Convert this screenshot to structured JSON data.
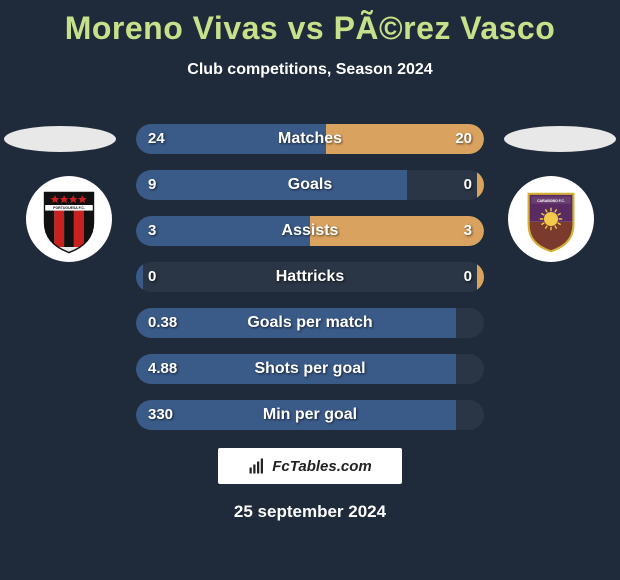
{
  "title": "Moreno Vivas vs PÃ©rez Vasco",
  "subtitle": "Club competitions, Season 2024",
  "date": "25 september 2024",
  "logo_text": "FcTables.com",
  "colors": {
    "bg": "#1f2a3a",
    "title": "#c7e08a",
    "bar_left": "#3a5a88",
    "bar_right": "#d9a25f",
    "bar_track": "#2a3545"
  },
  "stats": [
    {
      "label": "Matches",
      "left_val": "24",
      "right_val": "20",
      "left_pct": 54.5,
      "right_pct": 45.5
    },
    {
      "label": "Goals",
      "left_val": "9",
      "right_val": "0",
      "left_pct": 78,
      "right_pct": 2
    },
    {
      "label": "Assists",
      "left_val": "3",
      "right_val": "3",
      "left_pct": 50,
      "right_pct": 50
    },
    {
      "label": "Hattricks",
      "left_val": "0",
      "right_val": "0",
      "left_pct": 2,
      "right_pct": 2
    },
    {
      "label": "Goals per match",
      "left_val": "0.38",
      "right_val": "",
      "left_pct": 92,
      "right_pct": 0
    },
    {
      "label": "Shots per goal",
      "left_val": "4.88",
      "right_val": "",
      "left_pct": 92,
      "right_pct": 0
    },
    {
      "label": "Min per goal",
      "left_val": "330",
      "right_val": "",
      "left_pct": 92,
      "right_pct": 0
    }
  ],
  "crest_left": {
    "name": "portuguesa-fc",
    "shield_fill": "#e8e8e8",
    "stripes": [
      "#111111",
      "#c92020",
      "#111111",
      "#c92020",
      "#111111"
    ],
    "top_band": "#111111",
    "star_color": "#c92020"
  },
  "crest_right": {
    "name": "carabobo-fc",
    "shield_top": "#5a2b63",
    "shield_bottom": "#7a3a2e",
    "outline": "#d4af37",
    "sun": "#f2c94c"
  }
}
